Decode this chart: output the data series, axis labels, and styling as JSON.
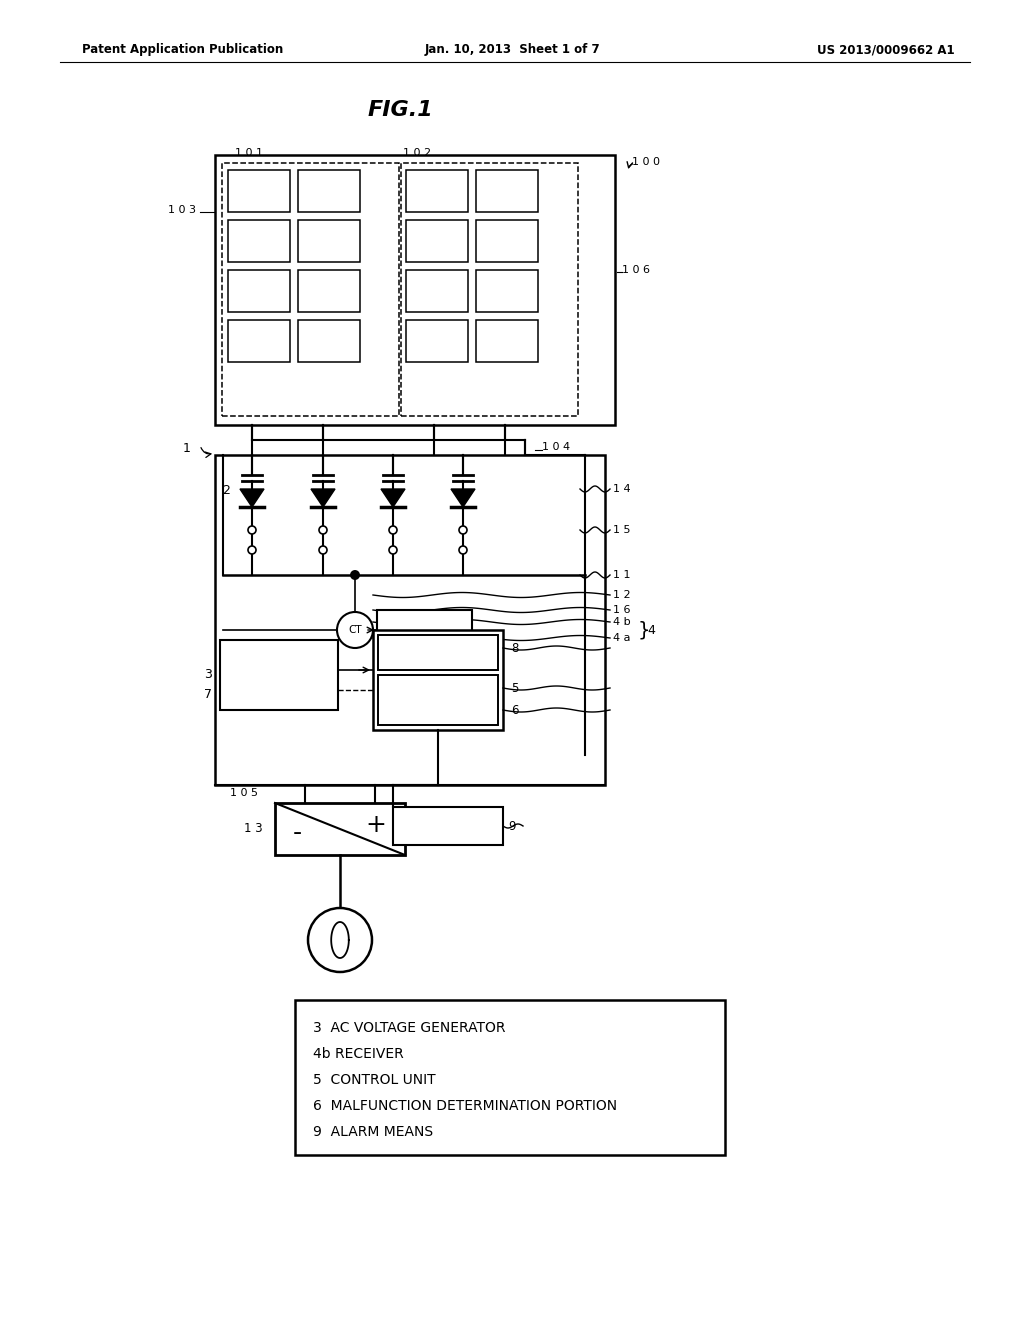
{
  "bg_color": "#ffffff",
  "header_left": "Patent Application Publication",
  "header_mid": "Jan. 10, 2013  Sheet 1 of 7",
  "header_right": "US 2013/0009662 A1",
  "fig_title": "FIG.1",
  "legend_lines": [
    "3  AC VOLTAGE GENERATOR",
    "4b RECEIVER",
    "5  CONTROL UNIT",
    "6  MALFUNCTION DETERMINATION PORTION",
    "9  ALARM MEANS"
  ]
}
